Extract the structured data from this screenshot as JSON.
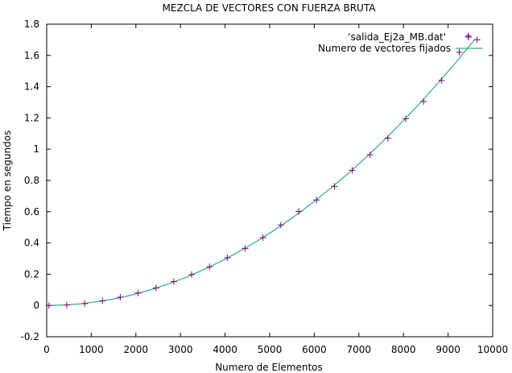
{
  "chart_data": {
    "type": "scatter",
    "title": "MEZCLA DE VECTORES CON FUERZA BRUTA",
    "xlabel": "Numero de Elementos",
    "ylabel": "Tiempo en segundos",
    "xlim": [
      0,
      10000
    ],
    "ylim": [
      -0.2,
      1.8
    ],
    "xticks": [
      0,
      1000,
      2000,
      3000,
      4000,
      5000,
      6000,
      7000,
      8000,
      9000,
      10000
    ],
    "yticks": [
      -0.2,
      0,
      0.2,
      0.4,
      0.6,
      0.8,
      1,
      1.2,
      1.4,
      1.6,
      1.8
    ],
    "grid": false,
    "legend_position": "top-right",
    "series": [
      {
        "name": "'salida_Ej2a_MB.dat'",
        "kind": "points",
        "color": "#800080",
        "marker": "plus",
        "x": [
          50,
          450,
          850,
          1250,
          1650,
          2050,
          2450,
          2850,
          3250,
          3650,
          4050,
          4450,
          4850,
          5250,
          5650,
          6050,
          6450,
          6850,
          7250,
          7650,
          8050,
          8450,
          8850,
          9250,
          9650
        ],
        "y": [
          0.0,
          0.003,
          0.012,
          0.03,
          0.053,
          0.08,
          0.112,
          0.153,
          0.198,
          0.247,
          0.305,
          0.365,
          0.435,
          0.515,
          0.602,
          0.675,
          0.762,
          0.865,
          0.965,
          1.07,
          1.195,
          1.305,
          1.44,
          1.62,
          1.7
        ]
      },
      {
        "name": "Numero de vectores fijados",
        "kind": "curve",
        "color": "#009e73",
        "x": [
          0,
          400,
          800,
          1200,
          1600,
          2000,
          2400,
          2800,
          3200,
          3600,
          4000,
          4400,
          4800,
          5200,
          5600,
          6000,
          6400,
          6800,
          7200,
          7600,
          8000,
          8400,
          8800,
          9200,
          9600
        ],
        "y": [
          0.0,
          0.003,
          0.012,
          0.027,
          0.047,
          0.074,
          0.106,
          0.145,
          0.189,
          0.24,
          0.296,
          0.358,
          0.426,
          0.5,
          0.58,
          0.666,
          0.758,
          0.855,
          0.958,
          1.068,
          1.183,
          1.304,
          1.431,
          1.564,
          1.703
        ]
      }
    ],
    "extra_legend_point": {
      "x": 9450,
      "y": 1.725
    }
  }
}
